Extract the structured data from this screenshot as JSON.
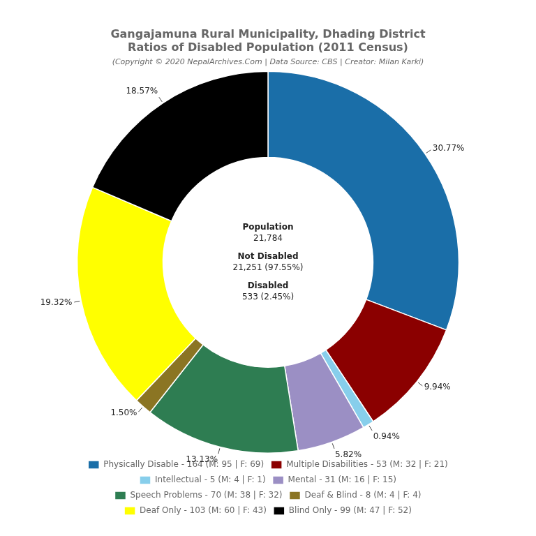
{
  "chart_data": {
    "type": "doughnut",
    "title": [
      "Gangajamuna Rural Municipality, Dhading District",
      "Ratios of Disabled Population (2011 Census)"
    ],
    "subtitle": "(Copyright © 2020 NepalArchives.Com | Data Source: CBS | Creator: Milan Karki)",
    "categories": [
      "Physically Disable - 164 (M: 95 | F: 69)",
      "Multiple Disabilities - 53 (M: 32 | F: 21)",
      "Intellectual - 5 (M: 4 | F: 1)",
      "Mental - 31 (M: 16 | F: 15)",
      "Speech Problems - 70 (M: 38 | F: 32)",
      "Deaf & Blind - 8 (M: 4 | F: 4)",
      "Deaf Only - 103 (M: 60 | F: 43)",
      "Blind Only - 99 (M: 47 | F: 52)"
    ],
    "values": [
      30.77,
      9.94,
      0.94,
      5.82,
      13.13,
      1.5,
      19.32,
      18.57
    ],
    "value_labels": [
      "30.77%",
      "9.94%",
      "0.94%",
      "5.82%",
      "13.13%",
      "1.50%",
      "19.32%",
      "18.57%"
    ],
    "colors": [
      "#1a6ea8",
      "#8b0000",
      "#87ceeb",
      "#9b8fc4",
      "#2e7d52",
      "#8b7523",
      "#ffff00",
      "#000000"
    ],
    "data_labels": true,
    "legend": "bottom",
    "annotations": [
      "Population",
      "21,784",
      "Not Disabled",
      "21,251 (97.55%)",
      "Disabled",
      "533 (2.45%)"
    ]
  }
}
